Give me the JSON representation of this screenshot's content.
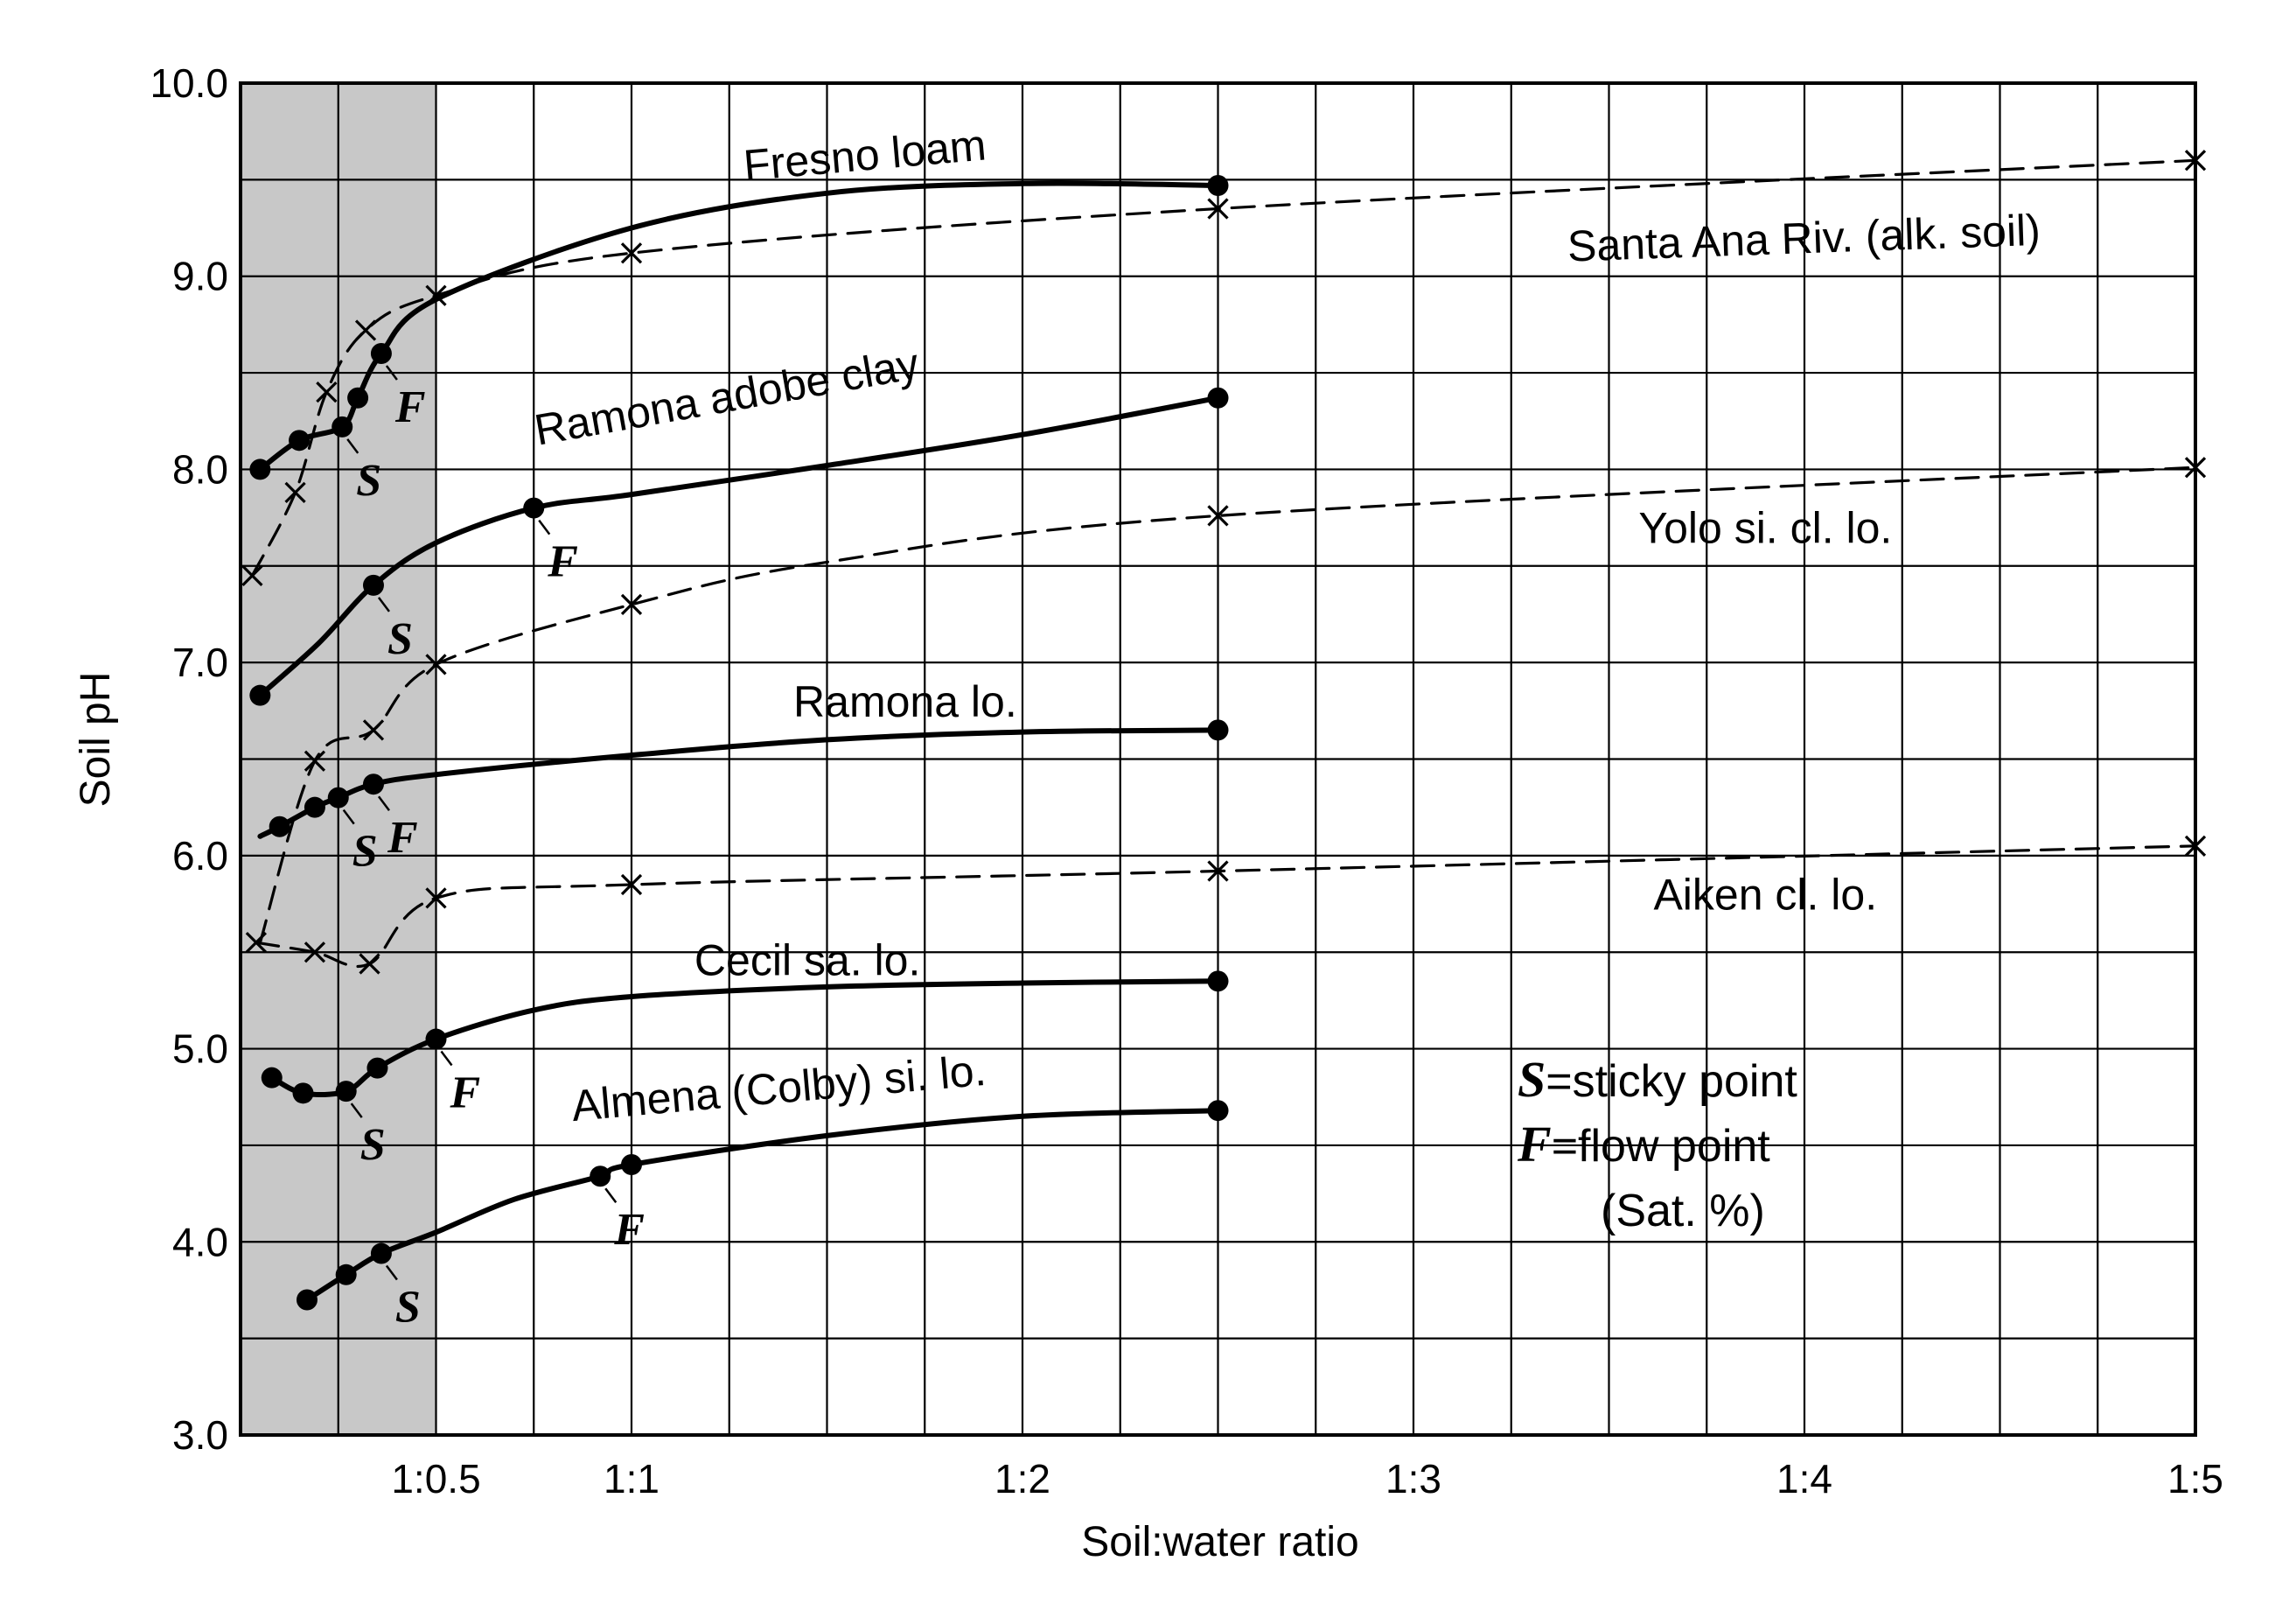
{
  "chart_data": {
    "type": "line",
    "title": "",
    "xlabel": "Soil:water ratio",
    "ylabel": "Soil pH",
    "xlim": [
      0,
      5
    ],
    "ylim": [
      3.0,
      10.0
    ],
    "grid": true,
    "shaded_region_x": [
      0,
      0.5
    ],
    "x_ticks": [
      {
        "value": 0.5,
        "label": "1:0.5"
      },
      {
        "value": 1,
        "label": "1:1"
      },
      {
        "value": 2,
        "label": "1:2"
      },
      {
        "value": 3,
        "label": "1:3"
      },
      {
        "value": 4,
        "label": "1:4"
      },
      {
        "value": 5,
        "label": "1:5"
      }
    ],
    "y_ticks": [
      {
        "value": 3.0,
        "label": "3.0"
      },
      {
        "value": 4.0,
        "label": "4.0"
      },
      {
        "value": 5.0,
        "label": "5.0"
      },
      {
        "value": 6.0,
        "label": "6.0"
      },
      {
        "value": 7.0,
        "label": "7.0"
      },
      {
        "value": 8.0,
        "label": "8.0"
      },
      {
        "value": 9.0,
        "label": "9.0"
      },
      {
        "value": 10.0,
        "label": "10.0"
      }
    ],
    "series": [
      {
        "name": "Fresno loam",
        "style": "solid",
        "marker": "dot",
        "x": [
          0.05,
          0.15,
          0.26,
          0.3,
          0.36,
          0.5,
          1.0,
          1.5,
          2.0,
          2.5
        ],
        "y": [
          8.0,
          8.15,
          8.22,
          8.37,
          8.6,
          8.88,
          9.25,
          9.43,
          9.48,
          9.47
        ],
        "markers_at": [
          0.05,
          0.15,
          0.26,
          0.3,
          0.36,
          2.5
        ],
        "sticky_point": [
          0.26,
          8.22
        ],
        "flow_point": [
          0.36,
          8.6
        ],
        "label": {
          "x": 1.6,
          "y": 9.55,
          "angle": -5
        }
      },
      {
        "name": "Santa Ana Riv. (alk. soil)",
        "style": "dashed",
        "marker": "x",
        "x": [
          0.03,
          0.14,
          0.22,
          0.32,
          0.5,
          1.0,
          2.5,
          5.0
        ],
        "y": [
          7.45,
          7.88,
          8.4,
          8.72,
          8.9,
          9.12,
          9.35,
          9.6
        ],
        "markers_at": [
          0.03,
          0.14,
          0.22,
          0.32,
          0.5,
          1.0,
          2.5,
          5.0
        ],
        "label": {
          "x": 4.0,
          "y": 9.12,
          "angle": -2
        }
      },
      {
        "name": "Ramona adobe clay",
        "style": "solid",
        "marker": "dot",
        "x": [
          0.05,
          0.2,
          0.34,
          0.5,
          0.75,
          1.0,
          1.5,
          2.0,
          2.5
        ],
        "y": [
          6.83,
          7.1,
          7.4,
          7.62,
          7.8,
          7.87,
          8.02,
          8.18,
          8.37
        ],
        "markers_at": [
          0.05,
          0.34,
          0.75,
          2.5
        ],
        "sticky_point": [
          0.34,
          7.4
        ],
        "flow_point": [
          0.75,
          7.8
        ],
        "label": {
          "x": 1.25,
          "y": 8.3,
          "angle": -10
        }
      },
      {
        "name": "Yolo si. cl. lo.",
        "style": "dashed",
        "marker": "x",
        "x": [
          0.05,
          0.19,
          0.34,
          0.5,
          1.0,
          1.5,
          2.5,
          5.0
        ],
        "y": [
          5.55,
          6.49,
          6.65,
          6.99,
          7.3,
          7.52,
          7.76,
          8.01
        ],
        "markers_at": [
          0.19,
          0.34,
          0.5,
          1.0,
          2.5,
          5.0
        ],
        "label": {
          "x": 3.9,
          "y": 7.62,
          "angle": 0
        }
      },
      {
        "name": "Ramona lo.",
        "style": "solid",
        "marker": "dot",
        "x": [
          0.05,
          0.1,
          0.19,
          0.25,
          0.34,
          0.5,
          1.0,
          1.5,
          2.0,
          2.5
        ],
        "y": [
          6.1,
          6.15,
          6.25,
          6.3,
          6.37,
          6.42,
          6.52,
          6.6,
          6.64,
          6.65
        ],
        "markers_at": [
          0.1,
          0.19,
          0.25,
          0.34,
          2.5
        ],
        "sticky_point": [
          0.25,
          6.3
        ],
        "flow_point": [
          0.34,
          6.37
        ],
        "label": {
          "x": 1.7,
          "y": 6.72,
          "angle": 0
        }
      },
      {
        "name": "Aiken cl. lo.",
        "style": "dashed",
        "marker": "x",
        "x": [
          0.04,
          0.19,
          0.33,
          0.5,
          1.0,
          2.5,
          5.0
        ],
        "y": [
          5.55,
          5.5,
          5.44,
          5.78,
          5.85,
          5.92,
          6.05
        ],
        "markers_at": [
          0.04,
          0.19,
          0.33,
          0.5,
          1.0,
          2.5,
          5.0
        ],
        "label": {
          "x": 3.9,
          "y": 5.72,
          "angle": 0
        }
      },
      {
        "name": "Cecil sa. lo.",
        "style": "solid",
        "marker": "dot",
        "x": [
          0.08,
          0.16,
          0.27,
          0.35,
          0.5,
          0.75,
          1.0,
          1.5,
          2.0,
          2.5
        ],
        "y": [
          4.85,
          4.77,
          4.78,
          4.9,
          5.05,
          5.2,
          5.27,
          5.32,
          5.34,
          5.35
        ],
        "markers_at": [
          0.08,
          0.16,
          0.27,
          0.35,
          0.5,
          2.5
        ],
        "sticky_point": [
          0.27,
          4.78
        ],
        "flow_point": [
          0.5,
          5.05
        ],
        "label": {
          "x": 1.45,
          "y": 5.38,
          "angle": 0
        }
      },
      {
        "name": "Almena (Colby) si. lo.",
        "style": "solid",
        "marker": "dot",
        "x": [
          0.17,
          0.27,
          0.36,
          0.5,
          0.7,
          0.92,
          1.0,
          1.5,
          2.0,
          2.5
        ],
        "y": [
          3.7,
          3.83,
          3.94,
          4.05,
          4.22,
          4.34,
          4.4,
          4.55,
          4.65,
          4.68
        ],
        "markers_at": [
          0.17,
          0.27,
          0.36,
          0.92,
          1.0,
          2.5
        ],
        "sticky_point": [
          0.36,
          3.94
        ],
        "flow_point": [
          0.92,
          4.34
        ],
        "label": {
          "x": 1.38,
          "y": 4.72,
          "angle": -5
        }
      }
    ],
    "point_letters": {
      "sticky": "S",
      "flow": "F"
    },
    "legend": {
      "position": "bottom-right",
      "entries": [
        {
          "letter": "S",
          "text": "=sticky point"
        },
        {
          "letter": "F",
          "text": "=flow point"
        },
        {
          "letter": "",
          "text": "(Sat. %)"
        }
      ]
    }
  }
}
